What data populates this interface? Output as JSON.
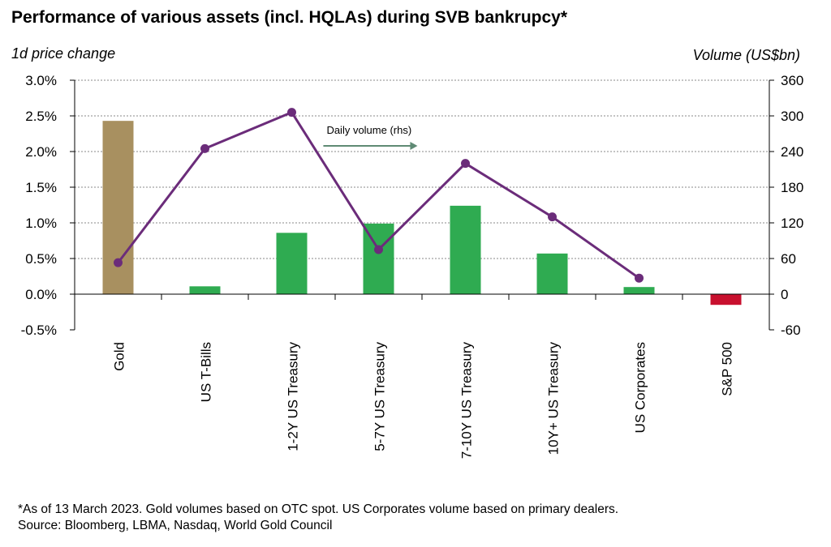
{
  "title": "Performance of various assets (incl. HQLAs) during SVB bankrupcy*",
  "footnote": {
    "line1": "*As of 13 March 2023. Gold volumes based on OTC spot. US Corporates volume based on primary dealers.",
    "line2": "Source: Bloomberg, LBMA, Nasdaq, World Gold Council"
  },
  "chart_data": {
    "type": "bar",
    "categories": [
      "Gold",
      "US T-Bills",
      "1-2Y US Treasury",
      "5-7Y US Treasury",
      "7-10Y US Treasury",
      "10Y+ US Treasury",
      "US Corporates",
      "S&P 500"
    ],
    "series": [
      {
        "type": "bar",
        "axis": "left",
        "values": [
          2.43,
          0.11,
          0.86,
          0.99,
          1.24,
          0.57,
          0.1,
          -0.15
        ],
        "colors": [
          "#a89060",
          "#2fab51",
          "#2fab51",
          "#2fab51",
          "#2fab51",
          "#2fab51",
          "#2fab51",
          "#c8102e"
        ]
      },
      {
        "type": "line",
        "axis": "right",
        "name": "Daily volume (rhs)",
        "values": [
          53,
          245,
          306,
          75,
          220,
          130,
          27,
          null
        ],
        "color": "#6b2c7a"
      }
    ],
    "ylabel": "1d price change",
    "y2label": "Volume (US$bn)",
    "ylim": [
      -0.5,
      3.0
    ],
    "y2lim": [
      -60,
      360
    ],
    "yticks": [
      "3.0%",
      "2.5%",
      "2.0%",
      "1.5%",
      "1.0%",
      "0.5%",
      "0.0%",
      "-0.5%"
    ],
    "y2ticks": [
      "360",
      "300",
      "240",
      "180",
      "120",
      "60",
      "0",
      "-60"
    ],
    "grid": true,
    "annotation": {
      "text": "Daily volume (rhs)",
      "arrow_color": "#5f8a74"
    }
  }
}
